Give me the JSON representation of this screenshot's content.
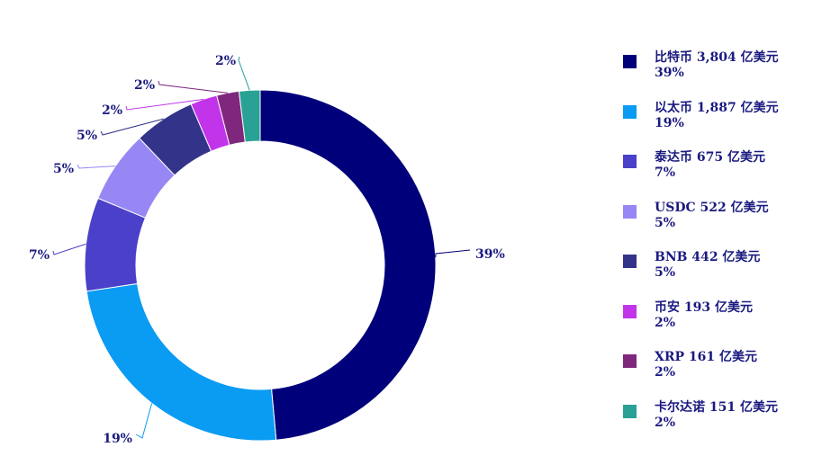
{
  "chart_data": {
    "type": "pie",
    "donut": true,
    "start_angle_deg": 0,
    "direction": "clockwise",
    "legend_position": "right",
    "series": [
      {
        "name": "比特币",
        "amount": "3,804 亿美元",
        "value": 3804,
        "percent_label": "39%",
        "color": "#00007a"
      },
      {
        "name": "以太币",
        "amount": "1,887 亿美元",
        "value": 1887,
        "percent_label": "19%",
        "color": "#0a9bf2"
      },
      {
        "name": "泰达币",
        "amount": "675 亿美元",
        "value": 675,
        "percent_label": "7%",
        "color": "#4b40c9"
      },
      {
        "name": "USDC",
        "amount": "522 亿美元",
        "value": 522,
        "percent_label": "5%",
        "color": "#9787f4"
      },
      {
        "name": "BNB",
        "amount": "442 亿美元",
        "value": 442,
        "percent_label": "5%",
        "color": "#34338a"
      },
      {
        "name": "币安",
        "amount": "193 亿美元",
        "value": 193,
        "percent_label": "2%",
        "color": "#c234ea"
      },
      {
        "name": "XRP",
        "amount": "161 亿美元",
        "value": 161,
        "percent_label": "2%",
        "color": "#7e277c"
      },
      {
        "name": "卡尔达诺",
        "amount": "151 亿美元",
        "value": 151,
        "percent_label": "2%",
        "color": "#2aa195"
      }
    ]
  }
}
